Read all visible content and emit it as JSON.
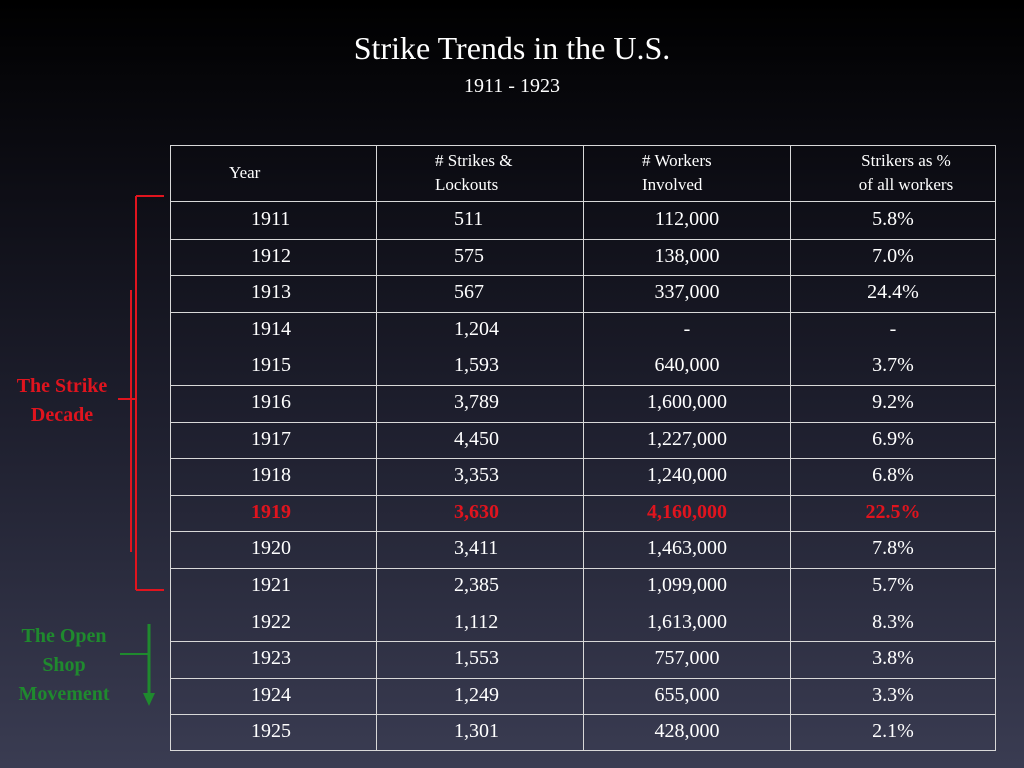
{
  "title": "Strike Trends in the U.S.",
  "subtitle": "1911 - 1923",
  "colors": {
    "highlight": "#e0141e",
    "strike_decade": "#e0141e",
    "open_shop": "#1f8a2e"
  },
  "annotations": {
    "strike_decade": {
      "line1": "The Strike",
      "line2": "Decade"
    },
    "open_shop": {
      "line1": "The Open",
      "line2": "Shop",
      "line3": "Movement"
    }
  },
  "table": {
    "headers": {
      "year": "Year",
      "strikes_line1": "# Strikes &",
      "strikes_line2": "Lockouts",
      "workers_line1": "# Workers",
      "workers_line2": "Involved",
      "percent_line1": "Strikers as %",
      "percent_line2": "of all workers"
    },
    "highlighted_year": "1919",
    "rows": [
      {
        "year": "1911",
        "strikes": "511",
        "workers": "112,000",
        "percent": "5.8%"
      },
      {
        "year": "1912",
        "strikes": "575",
        "workers": "138,000",
        "percent": "7.0%"
      },
      {
        "year": "1913",
        "strikes": "567",
        "workers": "337,000",
        "percent": "24.4%"
      },
      {
        "year": "1914",
        "strikes": "1,204",
        "workers": "-",
        "percent": "-"
      },
      {
        "year": "1915",
        "strikes": "1,593",
        "workers": "640,000",
        "percent": "3.7%"
      },
      {
        "year": "1916",
        "strikes": "3,789",
        "workers": "1,600,000",
        "percent": "9.2%"
      },
      {
        "year": "1917",
        "strikes": "4,450",
        "workers": "1,227,000",
        "percent": "6.9%"
      },
      {
        "year": "1918",
        "strikes": "3,353",
        "workers": "1,240,000",
        "percent": "6.8%"
      },
      {
        "year": "1919",
        "strikes": "3,630",
        "workers": "4,160,000",
        "percent": "22.5%"
      },
      {
        "year": "1920",
        "strikes": "3,411",
        "workers": "1,463,000",
        "percent": "7.8%"
      },
      {
        "year": "1921",
        "strikes": "2,385",
        "workers": "1,099,000",
        "percent": "5.7%"
      },
      {
        "year": "1922",
        "strikes": "1,112",
        "workers": "1,613,000",
        "percent": "8.3%"
      },
      {
        "year": "1923",
        "strikes": "1,553",
        "workers": "757,000",
        "percent": "3.8%"
      },
      {
        "year": "1924",
        "strikes": "1,249",
        "workers": "655,000",
        "percent": "3.3%"
      },
      {
        "year": "1925",
        "strikes": "1,301",
        "workers": "428,000",
        "percent": "2.1%"
      }
    ]
  }
}
